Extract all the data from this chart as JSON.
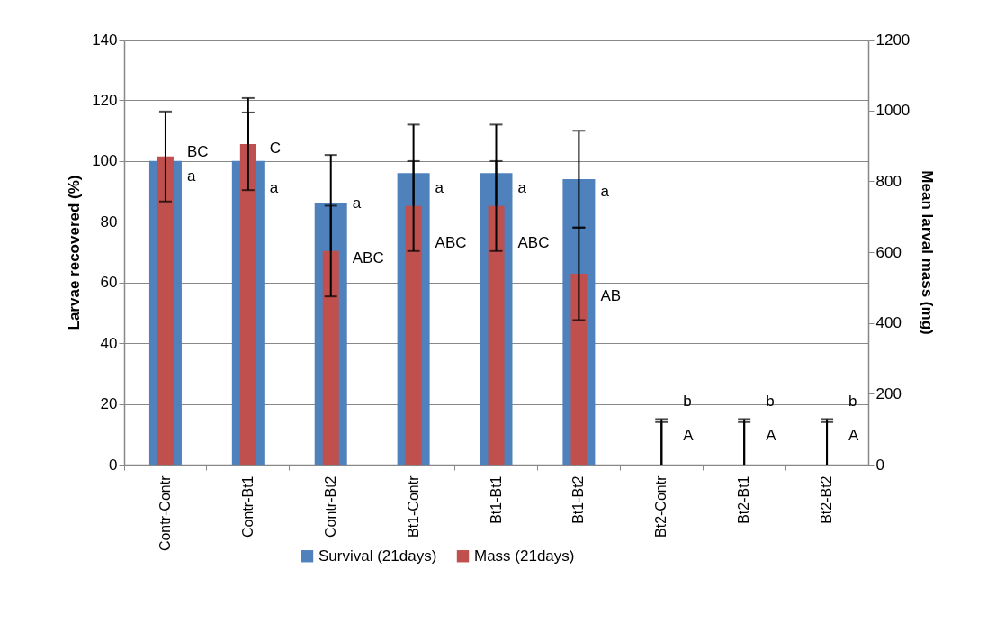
{
  "chart_data": {
    "type": "bar",
    "categories": [
      "Contr-Contr",
      "Contr-Bt1",
      "Contr-Bt2",
      "Bt1-Contr",
      "Bt1-Bt1",
      "Bt1-Bt2",
      "Bt2-Contr",
      "Bt2-Bt1",
      "Bt2-Bt2"
    ],
    "ylabel": "Larvae  recovered (%)",
    "y2label": "Mean larval mass (mg)",
    "ylim": [
      0,
      140
    ],
    "yticks": [
      0,
      20,
      40,
      60,
      80,
      100,
      120,
      140
    ],
    "y2lim": [
      0,
      1200
    ],
    "y2ticks": [
      0,
      200,
      400,
      600,
      800,
      1000,
      1200
    ],
    "series": [
      {
        "name": "Survival (21days)",
        "color": "#4f81bd",
        "values": [
          100,
          100,
          86,
          96,
          96,
          94,
          0,
          0,
          0
        ],
        "errors": [
          null,
          16,
          16,
          16,
          16,
          16,
          [
            0,
            15
          ],
          [
            0,
            15
          ],
          [
            0,
            15
          ]
        ]
      },
      {
        "name": "Mass (21days)",
        "color": "#c0504d",
        "axis": "y2",
        "values": [
          870,
          905,
          603,
          730,
          730,
          539,
          0,
          0,
          0
        ],
        "errors": [
          127,
          130,
          128,
          127,
          127,
          131,
          [
            0,
            120
          ],
          [
            0,
            120
          ],
          [
            0,
            120
          ]
        ]
      }
    ],
    "annotations": [
      {
        "text": "BC",
        "x": "Contr-Contr",
        "y": 103
      },
      {
        "text": "a",
        "x": "Contr-Contr",
        "y": 95
      },
      {
        "text": "C",
        "x": "Contr-Bt1",
        "y": 104
      },
      {
        "text": "a",
        "x": "Contr-Bt1",
        "y": 91
      },
      {
        "text": "a",
        "x": "Contr-Bt2",
        "y": 86
      },
      {
        "text": "ABC",
        "x": "Contr-Bt2",
        "y": 68
      },
      {
        "text": "a",
        "x": "Bt1-Contr",
        "y": 91
      },
      {
        "text": "ABC",
        "x": "Bt1-Contr",
        "y": 73
      },
      {
        "text": "a",
        "x": "Bt1-Bt1",
        "y": 91
      },
      {
        "text": "ABC",
        "x": "Bt1-Bt1",
        "y": 73
      },
      {
        "text": "a",
        "x": "Bt1-Bt2",
        "y": 90
      },
      {
        "text": "AB",
        "x": "Bt1-Bt2",
        "y": 55.5
      },
      {
        "text": "b",
        "x": "Bt2-Contr",
        "y": 15
      },
      {
        "text": "A",
        "x": "Bt2-Contr",
        "y": 9.5
      },
      {
        "text": "b",
        "x": "Bt2-Bt1",
        "y": 15
      },
      {
        "text": "A",
        "x": "Bt2-Bt1",
        "y": 9.5
      },
      {
        "text": "b",
        "x": "Bt2-Bt2",
        "y": 15
      },
      {
        "text": "A",
        "x": "Bt2-Bt2",
        "y": 9.5
      }
    ],
    "grid": "y",
    "legend": "bottom"
  }
}
